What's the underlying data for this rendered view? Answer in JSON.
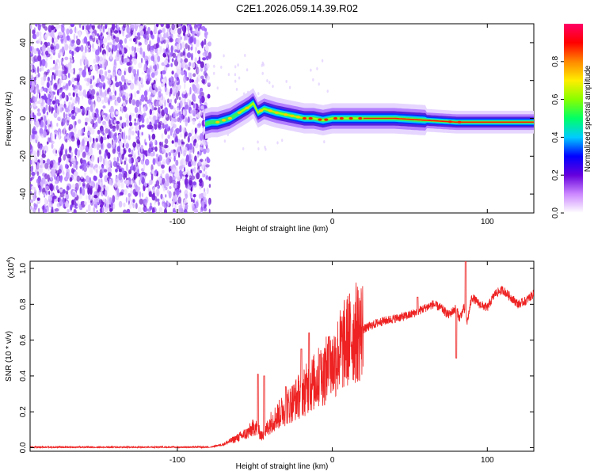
{
  "title": "C2E1.2026.059.14.39.R02",
  "chart_data": [
    {
      "type": "heatmap",
      "name": "spectrogram",
      "xlabel": "Height of straight line (km)",
      "ylabel": "Frequency (Hz)",
      "xlim": [
        -195,
        130
      ],
      "ylim": [
        -50,
        50
      ],
      "xticks": [
        -100,
        0,
        100
      ],
      "yticks": [
        -40,
        -20,
        0,
        20,
        40
      ],
      "noise_region_km": [
        -195,
        -79
      ],
      "ridge": {
        "x": [
          -82,
          -78,
          -74,
          -70,
          -66,
          -62,
          -58,
          -54,
          -51,
          -48,
          -46,
          -44,
          -40,
          -36,
          -30,
          -24,
          -18,
          -12,
          -6,
          0,
          10,
          20,
          40,
          60,
          80,
          100,
          130
        ],
        "y": [
          -3,
          -2,
          -2,
          -1,
          0,
          2,
          4,
          6,
          8,
          3,
          4,
          5,
          4,
          3,
          2,
          1,
          0,
          0,
          -1,
          0,
          0,
          0,
          0,
          -1,
          -2,
          -2,
          -2
        ]
      },
      "colorbar": {
        "label": "Normalized spectral amplitude",
        "range": [
          0,
          1
        ],
        "ticks": [
          "0.0",
          "0.2",
          "0.4",
          "0.6",
          "0.8"
        ],
        "tick_values": [
          0.0,
          0.2,
          0.4,
          0.6,
          0.8
        ],
        "colors": [
          "#ffffff",
          "#cc88ff",
          "#6600dd",
          "#0000ff",
          "#00ccff",
          "#00ff66",
          "#88ff00",
          "#ffee00",
          "#ff8800",
          "#ff0000",
          "#ff0066"
        ]
      }
    },
    {
      "type": "line",
      "name": "snr",
      "xlabel": "Height of straight line (km)",
      "ylabel": "SNR (10 * v/v)",
      "multiplier_base": "(x10",
      "multiplier_exp": "4",
      "multiplier_close": ")",
      "xlim": [
        -195,
        130
      ],
      "ylim": [
        -0.02,
        1.04
      ],
      "xticks": [
        -100,
        0,
        100
      ],
      "yticks": [
        "0.0",
        "0.2",
        "0.4",
        "0.6",
        "0.8",
        "1.0"
      ],
      "ytick_values": [
        0.0,
        0.2,
        0.4,
        0.6,
        0.8,
        1.0
      ],
      "color": "#ee2222",
      "envelope": {
        "x": [
          -195,
          -80,
          -75,
          -70,
          -65,
          -60,
          -55,
          -50,
          -45,
          -40,
          -35,
          -30,
          -25,
          -20,
          -15,
          -10,
          -5,
          0,
          5,
          10,
          15,
          20,
          25,
          30,
          35,
          40,
          45,
          50,
          55,
          60,
          65,
          70,
          75,
          80,
          82,
          85,
          87,
          90,
          95,
          100,
          105,
          110,
          115,
          120,
          125,
          130
        ],
        "y": [
          0.0,
          0.0,
          0.01,
          0.02,
          0.04,
          0.06,
          0.08,
          0.12,
          0.06,
          0.14,
          0.18,
          0.22,
          0.26,
          0.3,
          0.34,
          0.38,
          0.42,
          0.46,
          0.54,
          0.6,
          0.64,
          0.66,
          0.68,
          0.7,
          0.71,
          0.72,
          0.73,
          0.74,
          0.76,
          0.78,
          0.8,
          0.78,
          0.74,
          0.78,
          0.72,
          0.78,
          0.7,
          0.84,
          0.8,
          0.78,
          0.86,
          0.88,
          0.84,
          0.8,
          0.82,
          0.86
        ]
      },
      "spikes": [
        {
          "x": -48,
          "y": 0.41
        },
        {
          "x": -44,
          "y": 0.4
        },
        {
          "x": -30,
          "y": 0.34
        },
        {
          "x": -20,
          "y": 0.55
        },
        {
          "x": -15,
          "y": 0.64
        },
        {
          "x": -8,
          "y": 0.52
        },
        {
          "x": -2,
          "y": 0.62
        },
        {
          "x": 55,
          "y": 0.84
        },
        {
          "x": 80,
          "y": 0.5
        },
        {
          "x": 86,
          "y": 1.04
        }
      ]
    }
  ]
}
